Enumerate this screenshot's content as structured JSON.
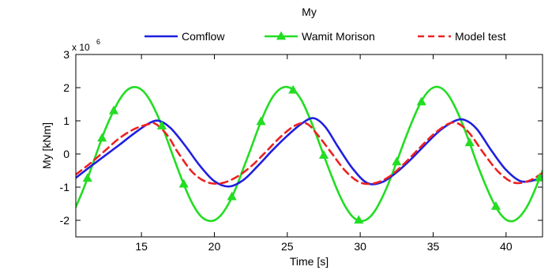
{
  "chart_data": {
    "type": "line",
    "title": "My",
    "xlabel": "Time [s]",
    "ylabel": "My [kNm]",
    "y_multiplier_label": "x 10",
    "y_multiplier_exponent": "6",
    "xlim": [
      10.5,
      42.5
    ],
    "ylim": [
      -2.5,
      3
    ],
    "x_ticks": [
      15,
      20,
      25,
      30,
      35,
      40
    ],
    "x_tick_labels": [
      "15",
      "20",
      "25",
      "30",
      "35",
      "40"
    ],
    "y_ticks": [
      -2,
      -1,
      0,
      1,
      2,
      3
    ],
    "y_tick_labels": [
      "-2",
      "-1",
      "0",
      "1",
      "2",
      "3"
    ],
    "grid": false,
    "legend_position": "top-center",
    "series": [
      {
        "name": "Comflow",
        "color": "#1f1fe0",
        "style": "solid",
        "marker": "none",
        "x": [
          10.5,
          11.5,
          12.5,
          13.5,
          14.5,
          15.5,
          16.2,
          17.0,
          18.0,
          19.0,
          20.0,
          21.0,
          22.0,
          23.0,
          24.0,
          25.0,
          26.0,
          26.8,
          27.6,
          28.5,
          29.5,
          30.5,
          31.5,
          32.5,
          33.5,
          34.5,
          35.5,
          36.5,
          37.2,
          38.0,
          39.0,
          40.0,
          41.0,
          42.0,
          42.5
        ],
        "y": [
          -0.72,
          -0.38,
          -0.05,
          0.28,
          0.62,
          0.92,
          1.0,
          0.78,
          0.25,
          -0.35,
          -0.82,
          -0.98,
          -0.78,
          -0.35,
          0.12,
          0.55,
          0.92,
          1.08,
          0.82,
          0.2,
          -0.45,
          -0.88,
          -0.85,
          -0.55,
          -0.15,
          0.3,
          0.72,
          1.0,
          1.02,
          0.75,
          0.1,
          -0.48,
          -0.82,
          -0.78,
          -0.68
        ]
      },
      {
        "name": "Wamit Morison",
        "color": "#22dd22",
        "style": "solid",
        "marker": "triangle",
        "x": [
          10.5,
          11.0,
          11.5,
          12.0,
          12.5,
          13.0,
          13.5,
          14.0,
          14.5,
          15.0,
          15.5,
          16.0,
          16.5,
          17.0,
          17.5,
          18.0,
          18.5,
          19.0,
          19.5,
          20.0,
          20.5,
          21.0,
          21.5,
          22.0,
          22.5,
          23.0,
          23.5,
          24.0,
          24.5,
          25.0,
          25.5,
          26.0,
          26.5,
          27.0,
          27.5,
          28.0,
          28.5,
          29.0,
          29.5,
          30.0,
          30.5,
          31.0,
          31.5,
          32.0,
          32.5,
          33.0,
          33.5,
          34.0,
          34.5,
          35.0,
          35.5,
          36.0,
          36.5,
          37.0,
          37.5,
          38.0,
          38.5,
          39.0,
          39.5,
          40.0,
          40.5,
          41.0,
          41.5,
          42.0,
          42.5
        ],
        "y": [
          -1.6,
          -1.08,
          -0.5,
          0.12,
          0.72,
          1.22,
          1.64,
          1.92,
          2.02,
          1.94,
          1.68,
          1.26,
          0.74,
          0.14,
          -0.46,
          -1.02,
          -1.5,
          -1.84,
          -2.0,
          -2.0,
          -1.82,
          -1.48,
          -1.0,
          -0.42,
          0.16,
          0.76,
          1.3,
          1.72,
          1.96,
          2.02,
          1.9,
          1.6,
          1.12,
          0.56,
          -0.04,
          -0.62,
          -1.16,
          -1.6,
          -1.9,
          -2.02,
          -1.96,
          -1.72,
          -1.32,
          -0.82,
          -0.24,
          0.36,
          0.92,
          1.42,
          1.8,
          2.0,
          2.0,
          1.8,
          1.42,
          0.92,
          0.34,
          -0.28,
          -0.84,
          -1.34,
          -1.74,
          -1.98,
          -2.02,
          -1.86,
          -1.54,
          -1.06,
          -0.5
        ]
      },
      {
        "name": "Model test",
        "color": "#ee2222",
        "style": "dashed",
        "marker": "none",
        "x": [
          10.5,
          11.5,
          12.5,
          13.5,
          14.5,
          15.5,
          16.0,
          16.8,
          17.5,
          18.5,
          19.5,
          20.5,
          21.5,
          22.5,
          23.5,
          24.5,
          25.5,
          26.3,
          27.0,
          28.0,
          29.0,
          30.0,
          31.0,
          32.0,
          33.0,
          34.0,
          35.0,
          36.0,
          36.7,
          37.5,
          38.5,
          39.5,
          40.5,
          41.5,
          42.5
        ],
        "y": [
          -0.62,
          -0.28,
          0.1,
          0.48,
          0.75,
          0.9,
          0.9,
          0.55,
          0.05,
          -0.55,
          -0.85,
          -0.88,
          -0.7,
          -0.38,
          0.05,
          0.5,
          0.85,
          0.92,
          0.62,
          0.05,
          -0.52,
          -0.86,
          -0.88,
          -0.68,
          -0.3,
          0.15,
          0.58,
          0.9,
          0.92,
          0.62,
          0.0,
          -0.55,
          -0.86,
          -0.82,
          -0.58
        ]
      }
    ],
    "wamit_marker_x": [
      11.3,
      12.3,
      13.1,
      16.4,
      17.9,
      21.2,
      23.2,
      25.4,
      27.5,
      29.9,
      32.5,
      34.2,
      37.5,
      39.3,
      42.3
    ]
  }
}
